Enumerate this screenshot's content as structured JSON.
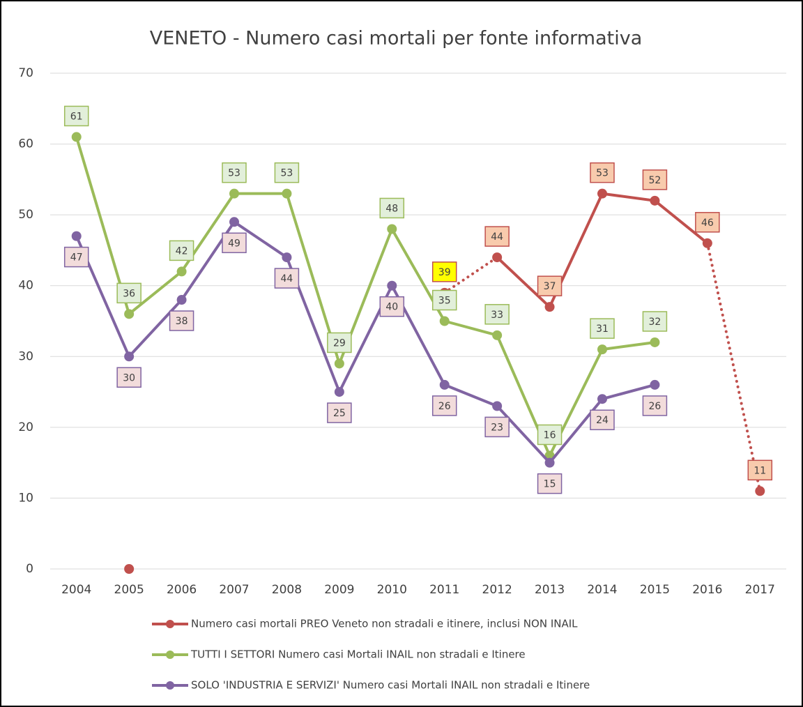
{
  "chart_data": {
    "type": "line",
    "title": "VENETO - Numero casi mortali per fonte informativa",
    "categories": [
      "2004",
      "2005",
      "2006",
      "2007",
      "2008",
      "2009",
      "2010",
      "2011",
      "2012",
      "2013",
      "2014",
      "2015",
      "2016",
      "2017"
    ],
    "ylim": [
      0,
      70
    ],
    "yticks": [
      0,
      10,
      20,
      30,
      40,
      50,
      60,
      70
    ],
    "grid": true,
    "series": [
      {
        "name": "Numero casi mortali PREO Veneto non stradali e itinere, inclusi NON INAIL",
        "color": "#c0504d",
        "label_fill": "#f8cbad",
        "values": [
          null,
          0,
          null,
          null,
          null,
          null,
          null,
          39,
          44,
          37,
          53,
          52,
          46,
          11
        ],
        "value_labels": [
          null,
          null,
          null,
          null,
          null,
          null,
          null,
          39,
          44,
          37,
          53,
          52,
          46,
          11
        ],
        "dotted_segments": [
          7,
          12
        ],
        "highlight": {
          "index": 7,
          "color": "#ffff00"
        }
      },
      {
        "name": "TUTTI I SETTORI Numero casi Mortali INAIL non stradali e Itinere",
        "color": "#9bbb59",
        "label_fill": "#e2efda",
        "values": [
          61,
          36,
          42,
          53,
          53,
          29,
          48,
          35,
          33,
          16,
          31,
          32,
          null,
          null
        ]
      },
      {
        "name": "SOLO 'INDUSTRIA E SERVIZI' Numero casi Mortali INAIL non stradali e Itinere",
        "color": "#8064a2",
        "label_fill": "#f2dcdb",
        "values": [
          47,
          30,
          38,
          49,
          44,
          25,
          40,
          26,
          23,
          15,
          24,
          26,
          null,
          null
        ]
      }
    ]
  }
}
